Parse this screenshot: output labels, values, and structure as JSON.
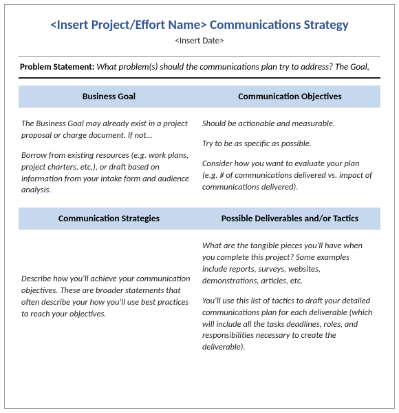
{
  "colors": {
    "title": "#2f5496",
    "header_bg": "#c5d8ed",
    "border": "#a0a0a0",
    "rule": "#222222"
  },
  "doc": {
    "title": "<Insert Project/Effort Name> Communications Strategy",
    "date": "<Insert Date>",
    "problem_label": "Problem Statement: ",
    "problem_text": "What problem(s) should the communications plan try to address? The Goal,"
  },
  "grid": {
    "h1": "Business Goal",
    "h2": "Communication Objectives",
    "h3": "Communication Strategies",
    "h4": "Possible Deliverables and/or Tactics",
    "c1a": "The Business Goal may already exist in a project proposal or charge document. If not…",
    "c1b": "Borrow from existing resources (e.g. work plans, project charters, etc.), or draft based on information from your intake form and audience analysis.",
    "c2a": "Should be actionable and measurable.",
    "c2b": "Try to be as specific as possible.",
    "c2c": "Consider how you want to evaluate your plan (e.g. # of communications delivered vs. impact of communications delivered).",
    "c3a": "Describe how you'll achieve your communication objectives. These are broader statements that often describe your how you'll use best practices to reach your objectives.",
    "c4a": "What are the tangible pieces you'll have when you complete this project? Some examples include reports, surveys, websites, demonstrations, articles, etc.",
    "c4b": "You'll use this list of tactics to draft your detailed communications plan for each deliverable (which will include all the tasks deadlines, roles, and responsibilities necessary to create the deliverable)."
  }
}
